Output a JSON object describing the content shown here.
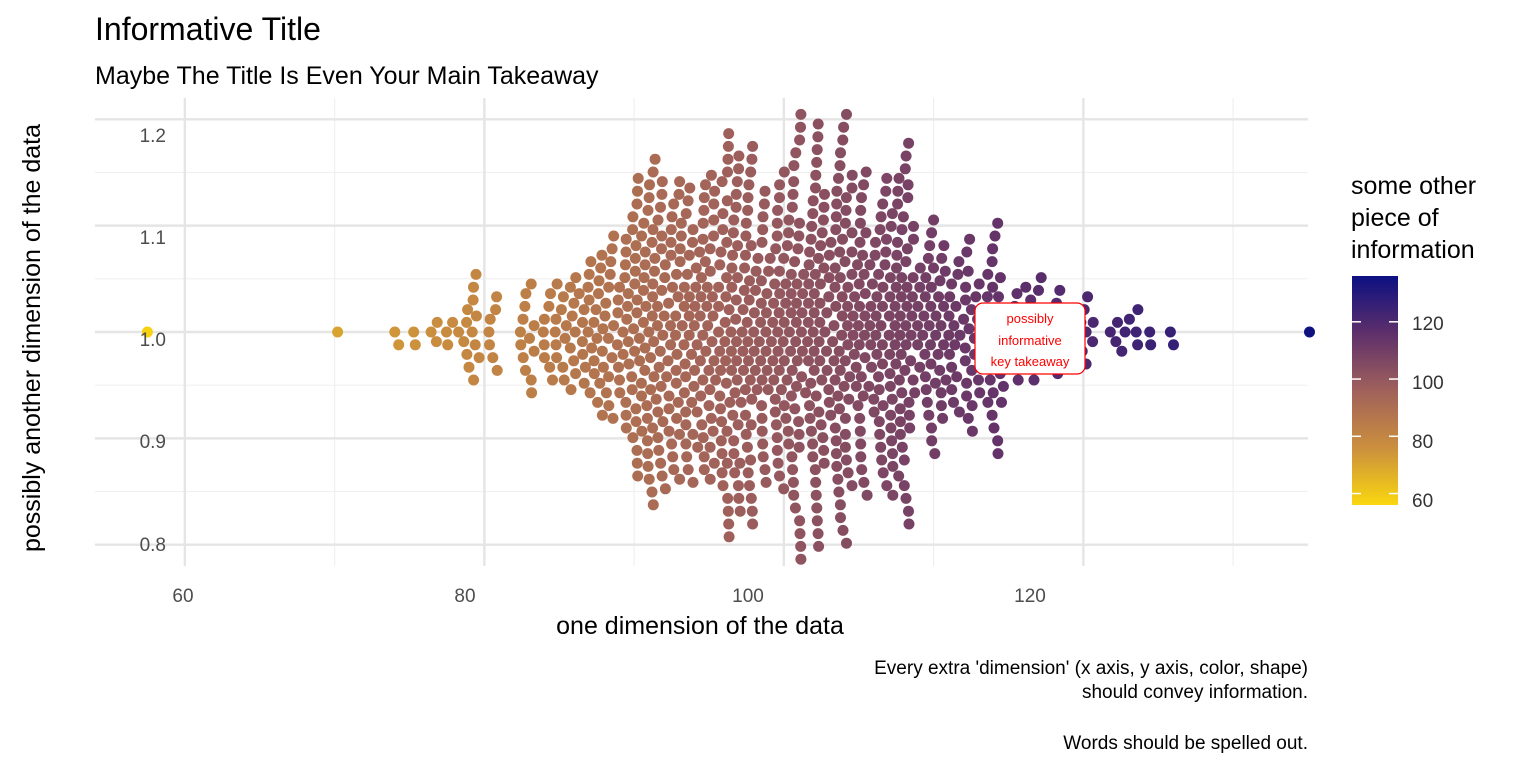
{
  "colors": {
    "low": "#F9D70F",
    "mid": "#A0615B",
    "high": "#0C1082",
    "annotation": "#FF0000",
    "grid_major": "#E5E5E5",
    "grid_minor": "#F0F0F0"
  },
  "chart_data": {
    "type": "scatter",
    "title": "Informative Title",
    "subtitle": "Maybe The Title Is Even Your Main Takeaway",
    "xlabel": "one dimension of the data",
    "ylabel": "possibly another dimension of the data",
    "xlim": [
      54,
      135
    ],
    "ylim": [
      0.78,
      1.22
    ],
    "x_ticks": [
      60,
      80,
      100,
      120
    ],
    "y_ticks": [
      0.8,
      0.9,
      1.0,
      1.1,
      1.2
    ],
    "x_tick_labels": [
      "60",
      "80",
      "100",
      "120"
    ],
    "y_tick_labels": [
      "0.8",
      "0.9",
      "1.0",
      "1.1",
      "1.2"
    ],
    "grid": true,
    "points_description": "beeswarm of about 1000 points centred on y = 1.0, x roughly normal (mean 100, sd 10); color encodes x value",
    "x_mean": 100,
    "x_sd": 10,
    "n_points": 1000,
    "outliers": [
      {
        "x": 57.5,
        "y": 1.0
      },
      {
        "x": 70.2,
        "y": 1.0
      },
      {
        "x": 135.1,
        "y": 1.0
      }
    ],
    "legend": {
      "title": [
        "some other",
        "piece of",
        "information"
      ],
      "range": [
        56,
        136
      ],
      "ticks": [
        "60",
        "80",
        "100",
        "120"
      ],
      "tick_values": [
        60,
        80,
        100,
        120
      ],
      "position": "right"
    },
    "annotation": {
      "lines": [
        "possibly",
        "informative",
        "key takeaway"
      ],
      "x": 120,
      "y": 1.0
    },
    "caption": [
      "Every extra 'dimension' (x axis, y axis, color, shape)",
      "should convey information.",
      "",
      "Words should be spelled out."
    ]
  }
}
